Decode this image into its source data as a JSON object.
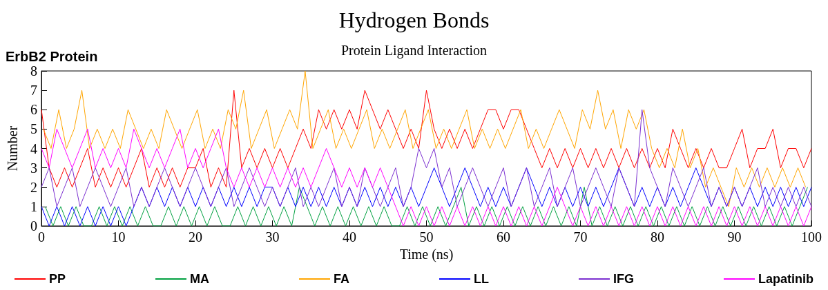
{
  "chart_data": {
    "type": "line",
    "title": "Hydrogen Bonds",
    "subtitle": "Protein Ligand Interaction",
    "xlabel": "Time (ns)",
    "ylabel": "Number",
    "annotations": [
      "ErbB2 Protein"
    ],
    "x": [
      0,
      1,
      2,
      3,
      4,
      5,
      6,
      7,
      8,
      9,
      10,
      11,
      12,
      13,
      14,
      15,
      16,
      17,
      18,
      19,
      20,
      21,
      22,
      23,
      24,
      25,
      26,
      27,
      28,
      29,
      30,
      31,
      32,
      33,
      34,
      35,
      36,
      37,
      38,
      39,
      40,
      41,
      42,
      43,
      44,
      45,
      46,
      47,
      48,
      49,
      50,
      51,
      52,
      53,
      54,
      55,
      56,
      57,
      58,
      59,
      60,
      61,
      62,
      63,
      64,
      65,
      66,
      67,
      68,
      69,
      70,
      71,
      72,
      73,
      74,
      75,
      76,
      77,
      78,
      79,
      80,
      81,
      82,
      83,
      84,
      85,
      86,
      87,
      88,
      89,
      90,
      91,
      92,
      93,
      94,
      95,
      96,
      97,
      98,
      99,
      100
    ],
    "series": [
      {
        "name": "PP",
        "color": "#ff0000",
        "values": [
          6,
          3,
          2,
          3,
          2,
          3,
          4,
          2,
          3,
          2,
          3,
          2,
          3,
          4,
          2,
          3,
          2,
          3,
          2,
          3,
          3,
          4,
          2,
          3,
          2,
          7,
          3,
          4,
          3,
          4,
          3,
          4,
          3,
          4,
          5,
          4,
          6,
          5,
          6,
          5,
          6,
          5,
          7,
          6,
          5,
          6,
          5,
          4,
          5,
          4,
          7,
          5,
          4,
          5,
          4,
          5,
          4,
          5,
          6,
          6,
          5,
          6,
          6,
          5,
          4,
          3,
          4,
          3,
          4,
          3,
          4,
          3,
          4,
          3,
          4,
          3,
          4,
          3,
          4,
          3,
          4,
          3,
          5,
          4,
          3,
          4,
          3,
          4,
          3,
          3,
          4,
          5,
          3,
          4,
          4,
          5,
          3,
          4,
          4,
          3,
          4
        ]
      },
      {
        "name": "MA",
        "color": "#00a040",
        "x": [
          0.5,
          1.5,
          2.5,
          3.5,
          4.5,
          5.5,
          6.5,
          7.5,
          8.5,
          9.5,
          10.5,
          11.5,
          12.5,
          13.5,
          14.5,
          15.5,
          16.5,
          17.5,
          18.5,
          19.5,
          20.5,
          21.5,
          22.5,
          23.5,
          24.5,
          25.5,
          26.5,
          27.5,
          28.5,
          29.5,
          30.5,
          31.5,
          32.5,
          33.5,
          34.5,
          35.5,
          36.5,
          37.5,
          38.5,
          39.5,
          40.5,
          41.5,
          42.5,
          43.5,
          44.5,
          45.5,
          46.5,
          47.5,
          48.5,
          49.5,
          50.5,
          51.5,
          52.5,
          53.5,
          54.5,
          55.5,
          56.5,
          57.5,
          58.5,
          59.5,
          60.5,
          61.5,
          62.5,
          63.5,
          64.5,
          65.5,
          66.5,
          67.5,
          68.5,
          69.5,
          70.5,
          71.5,
          72.5,
          73.5,
          74.5,
          75.5,
          76.5,
          77.5,
          78.5,
          79.5,
          80.5,
          81.5,
          82.5,
          83.5,
          84.5,
          85.5,
          86.5,
          87.5,
          88.5,
          89.5,
          90.5,
          91.5,
          92.5,
          93.5,
          94.5,
          95.5,
          96.5,
          97.5,
          98.5,
          99.5
        ],
        "values": [
          1,
          0,
          1,
          0,
          1,
          0,
          0,
          1,
          0,
          1,
          0,
          1,
          0,
          1,
          0,
          0,
          1,
          0,
          1,
          0,
          1,
          0,
          1,
          0,
          0,
          1,
          0,
          1,
          0,
          1,
          0,
          1,
          0,
          2,
          1,
          0,
          1,
          0,
          1,
          0,
          1,
          0,
          1,
          0,
          1,
          0,
          0,
          1,
          0,
          1,
          0,
          1,
          0,
          1,
          2,
          0,
          1,
          0,
          1,
          0,
          1,
          0,
          1,
          0,
          1,
          0,
          1,
          0,
          1,
          0,
          2,
          0,
          1,
          0,
          1,
          0,
          1,
          0,
          1,
          0,
          1,
          0,
          1,
          0,
          1,
          0,
          1,
          0,
          1,
          0,
          1,
          0,
          1,
          0,
          1,
          0,
          1,
          0,
          1,
          2
        ]
      },
      {
        "name": "FA",
        "color": "#ffa500",
        "x": [
          0.25,
          1.25,
          2.25,
          3.25,
          4.25,
          5.25,
          6.25,
          7.25,
          8.25,
          9.25,
          10.25,
          11.25,
          12.25,
          13.25,
          14.25,
          15.25,
          16.25,
          17.25,
          18.25,
          19.25,
          20.25,
          21.25,
          22.25,
          23.25,
          24.25,
          25.25,
          26.25,
          27.25,
          28.25,
          29.25,
          30.25,
          31.25,
          32.25,
          33.25,
          34.25,
          35.25,
          36.25,
          37.25,
          38.25,
          39.25,
          40.25,
          41.25,
          42.25,
          43.25,
          44.25,
          45.25,
          46.25,
          47.25,
          48.25,
          49.25,
          50.25,
          51.25,
          52.25,
          53.25,
          54.25,
          55.25,
          56.25,
          57.25,
          58.25,
          59.25,
          60.25,
          61.25,
          62.25,
          63.25,
          64.25,
          65.25,
          66.25,
          67.25,
          68.25,
          69.25,
          70.25,
          71.25,
          72.25,
          73.25,
          74.25,
          75.25,
          76.25,
          77.25,
          78.25,
          79.25,
          80.25,
          81.25,
          82.25,
          83.25,
          84.25,
          85.25,
          86.25,
          87.25,
          88.25,
          89.25,
          90.25,
          91.25,
          92.25,
          93.25,
          94.25,
          95.25,
          96.25,
          97.25,
          98.25,
          99.25
        ],
        "values": [
          5,
          4,
          6,
          4,
          5,
          7,
          4,
          5,
          4,
          5,
          4,
          6,
          5,
          4,
          5,
          4,
          6,
          5,
          4,
          5,
          6,
          4,
          5,
          4,
          6,
          5,
          7,
          4,
          5,
          6,
          4,
          5,
          6,
          5,
          8,
          4,
          5,
          6,
          4,
          5,
          4,
          5,
          6,
          4,
          5,
          4,
          5,
          6,
          4,
          5,
          6,
          4,
          5,
          4,
          5,
          6,
          4,
          5,
          4,
          5,
          4,
          5,
          6,
          4,
          5,
          4,
          5,
          6,
          5,
          4,
          6,
          5,
          7,
          5,
          6,
          4,
          6,
          5,
          6,
          4,
          3,
          4,
          3,
          5,
          3,
          4,
          2,
          3,
          2,
          1,
          3,
          2,
          3,
          2,
          3,
          2,
          3,
          2,
          3,
          2
        ]
      },
      {
        "name": "LL",
        "color": "#0000ff",
        "values": [
          1,
          0,
          1,
          0,
          1,
          0,
          1,
          0,
          1,
          0,
          1,
          0,
          1,
          2,
          1,
          2,
          1,
          2,
          1,
          2,
          1,
          2,
          1,
          2,
          1,
          2,
          1,
          2,
          1,
          2,
          2,
          1,
          2,
          1,
          2,
          1,
          2,
          1,
          2,
          1,
          2,
          1,
          2,
          1,
          2,
          1,
          2,
          1,
          2,
          1,
          2,
          3,
          2,
          1,
          2,
          3,
          2,
          1,
          2,
          1,
          2,
          1,
          2,
          3,
          2,
          1,
          2,
          1,
          2,
          1,
          2,
          1,
          2,
          1,
          2,
          3,
          2,
          1,
          2,
          1,
          2,
          1,
          2,
          1,
          2,
          3,
          2,
          1,
          2,
          1,
          2,
          1,
          2,
          1,
          2,
          1,
          2,
          1,
          2,
          1,
          2
        ]
      },
      {
        "name": "IFG",
        "color": "#7b2fd0",
        "values": [
          2,
          3,
          1,
          2,
          3,
          1,
          2,
          3,
          2,
          1,
          2,
          3,
          1,
          2,
          1,
          2,
          3,
          2,
          1,
          2,
          3,
          2,
          1,
          2,
          3,
          1,
          2,
          3,
          2,
          1,
          2,
          1,
          2,
          3,
          1,
          2,
          1,
          2,
          3,
          1,
          2,
          1,
          3,
          2,
          1,
          2,
          3,
          1,
          2,
          4,
          3,
          4,
          2,
          3,
          1,
          2,
          3,
          2,
          1,
          2,
          3,
          1,
          2,
          3,
          1,
          2,
          3,
          1,
          2,
          3,
          1,
          2,
          3,
          2,
          1,
          3,
          2,
          1,
          6,
          3,
          2,
          1,
          3,
          2,
          1,
          2,
          3,
          1,
          2,
          1,
          2,
          1,
          2,
          3,
          1,
          2,
          1,
          2,
          1,
          2,
          1
        ]
      },
      {
        "name": "Lapatinib",
        "color": "#ff00ff",
        "values": [
          4,
          3,
          5,
          4,
          3,
          4,
          5,
          3,
          4,
          3,
          4,
          3,
          5,
          4,
          3,
          4,
          3,
          4,
          5,
          3,
          4,
          3,
          4,
          5,
          3,
          2,
          3,
          2,
          3,
          2,
          3,
          2,
          3,
          2,
          3,
          2,
          3,
          4,
          3,
          2,
          3,
          2,
          3,
          2,
          3,
          2,
          1,
          0,
          1,
          0,
          1,
          0,
          1,
          0,
          1,
          0,
          1,
          0,
          1,
          0,
          1,
          0,
          1,
          0,
          1,
          0,
          1,
          2,
          1,
          0,
          1,
          0,
          1,
          0,
          1,
          0,
          1,
          0,
          1,
          0,
          1,
          0,
          1,
          0,
          1,
          0,
          1,
          0,
          1,
          0,
          1,
          0,
          1,
          0,
          1,
          0,
          1,
          0,
          1,
          0,
          1
        ]
      }
    ],
    "xlim": [
      0,
      100
    ],
    "xticks": [
      0,
      10,
      20,
      30,
      40,
      50,
      60,
      70,
      80,
      90,
      100
    ],
    "ylim": [
      0,
      8
    ],
    "yticks": [
      0,
      1,
      2,
      3,
      4,
      5,
      6,
      7,
      8
    ],
    "grid": false,
    "legend": "bottom",
    "marker": "none",
    "line_style": "solid"
  }
}
